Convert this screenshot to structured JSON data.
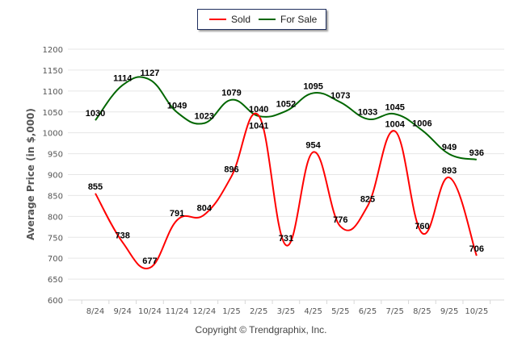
{
  "chart_data": {
    "type": "line",
    "title": "",
    "xlabel": "",
    "ylabel": "Average Price (in $,000)",
    "ylim": [
      600,
      1200
    ],
    "yticks": [
      600,
      650,
      700,
      750,
      800,
      850,
      900,
      950,
      1000,
      1050,
      1100,
      1150,
      1200
    ],
    "grid": true,
    "legend_position": "top-center",
    "categories": [
      "8/24",
      "9/24",
      "10/24",
      "11/24",
      "12/24",
      "1/25",
      "2/25",
      "3/25",
      "4/25",
      "5/25",
      "6/25",
      "7/25",
      "8/25",
      "9/25",
      "10/25"
    ],
    "series": [
      {
        "name": "Sold",
        "color": "#ff0000",
        "values": [
          855,
          738,
          677,
          791,
          804,
          896,
          1041,
          731,
          954,
          776,
          825,
          1004,
          760,
          893,
          706
        ]
      },
      {
        "name": "For Sale",
        "color": "#006600",
        "values": [
          1030,
          1114,
          1127,
          1049,
          1023,
          1079,
          1040,
          1052,
          1095,
          1073,
          1033,
          1045,
          1006,
          949,
          936
        ]
      }
    ]
  },
  "legend": {
    "items": [
      {
        "label": "Sold",
        "color": "#ff0000"
      },
      {
        "label": "For Sale",
        "color": "#006600"
      }
    ]
  },
  "footer": {
    "copyright": "Copyright © Trendgraphix, Inc."
  }
}
